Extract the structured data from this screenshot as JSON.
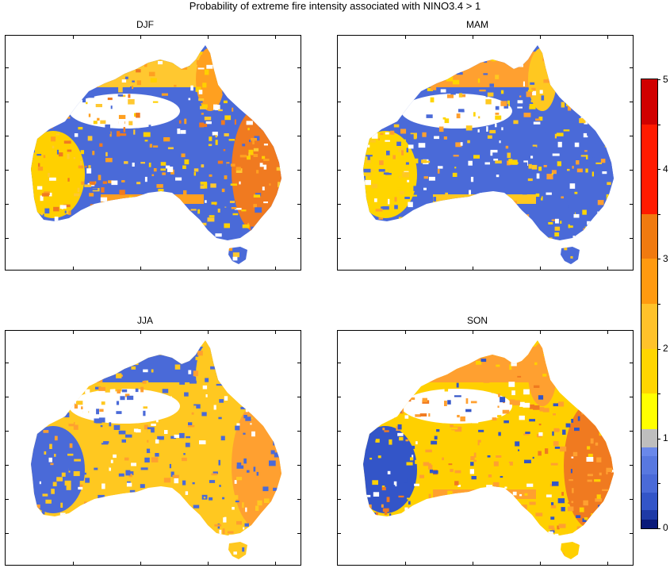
{
  "title": "Probability of extreme fire intensity associated with NINO3.4 > 1",
  "chart_data": {
    "type": "heatmap",
    "title": "Probability of extreme fire intensity associated with NINO3.4 > 1",
    "panels": [
      {
        "label": "DJF"
      },
      {
        "label": "MAM"
      },
      {
        "label": "JJA"
      },
      {
        "label": "SON"
      }
    ],
    "colorbar": {
      "range": [
        0,
        5
      ],
      "tick_labels": [
        "0",
        "1",
        "2",
        "3",
        "4",
        "5"
      ],
      "bins": [
        {
          "from": 0.0,
          "to": 0.1,
          "color": "#0a1a7a"
        },
        {
          "from": 0.1,
          "to": 0.2,
          "color": "#1e3aa6"
        },
        {
          "from": 0.2,
          "to": 0.4,
          "color": "#3355c8"
        },
        {
          "from": 0.4,
          "to": 0.6,
          "color": "#4a6ad8"
        },
        {
          "from": 0.6,
          "to": 0.8,
          "color": "#5878e0"
        },
        {
          "from": 0.8,
          "to": 0.9,
          "color": "#6a88ea"
        },
        {
          "from": 0.9,
          "to": 1.1,
          "color": "#bebebe"
        },
        {
          "from": 1.1,
          "to": 1.5,
          "color": "#ffff00"
        },
        {
          "from": 1.5,
          "to": 2.0,
          "color": "#ffd500"
        },
        {
          "from": 2.0,
          "to": 2.5,
          "color": "#ffc22a"
        },
        {
          "from": 2.5,
          "to": 3.0,
          "color": "#ff9a10"
        },
        {
          "from": 3.0,
          "to": 3.5,
          "color": "#f07a10"
        },
        {
          "from": 3.5,
          "to": 4.5,
          "color": "#ff1a00"
        },
        {
          "from": 4.5,
          "to": 5.0,
          "color": "#d00000"
        }
      ]
    },
    "regions": {
      "DJF": {
        "coast": "#ffa020",
        "north": "#ffc830",
        "interior": "#4a6ad8",
        "east": "#f07a20",
        "southwest": "#ffd000"
      },
      "MAM": {
        "coast": "#ffc820",
        "north": "#ffa030",
        "interior": "#4a6ad8",
        "east": "#4a6ad8",
        "southwest": "#ffd500"
      },
      "JJA": {
        "coast": "#ffc820",
        "north": "#4a6ad8",
        "interior": "#ffc820",
        "east": "#ffa030",
        "southwest": "#4a6ad8"
      },
      "SON": {
        "coast": "#ffa030",
        "north": "#ffa030",
        "interior": "#ffd000",
        "east": "#f07a20",
        "southwest": "#3355c8"
      }
    }
  }
}
